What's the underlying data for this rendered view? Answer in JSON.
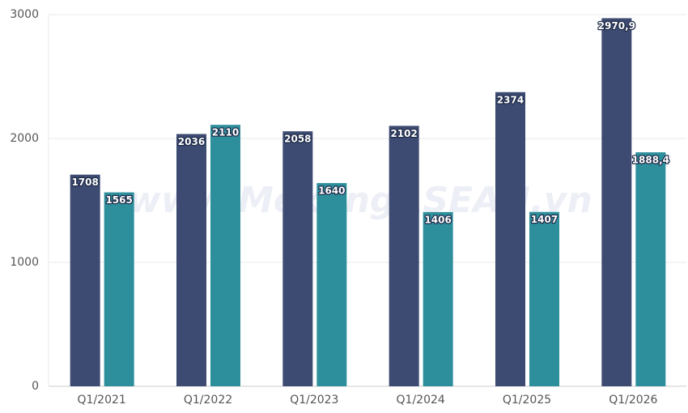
{
  "chart_data": {
    "type": "bar",
    "watermark": "www.MekongASEAN.vn",
    "categories": [
      "Q1/2021",
      "Q1/2022",
      "Q1/2023",
      "Q1/2024",
      "Q1/2025",
      "Q1/2026"
    ],
    "series": [
      {
        "color": "#3d4b72",
        "values": [
          1708,
          2036,
          2058,
          2102,
          2374,
          2970.9
        ],
        "value_labels": [
          "1708",
          "2036",
          "2058",
          "2102",
          "2374",
          "2970,9"
        ]
      },
      {
        "color": "#2e8f9c",
        "values": [
          1565,
          2110,
          1640,
          1406,
          1407,
          1888.4
        ],
        "value_labels": [
          "1565",
          "2110",
          "1640",
          "1406",
          "1407",
          "1888,4"
        ]
      }
    ],
    "ylim": [
      0,
      3000
    ],
    "yticks": [
      0,
      1000,
      2000,
      3000
    ],
    "grid": true
  }
}
